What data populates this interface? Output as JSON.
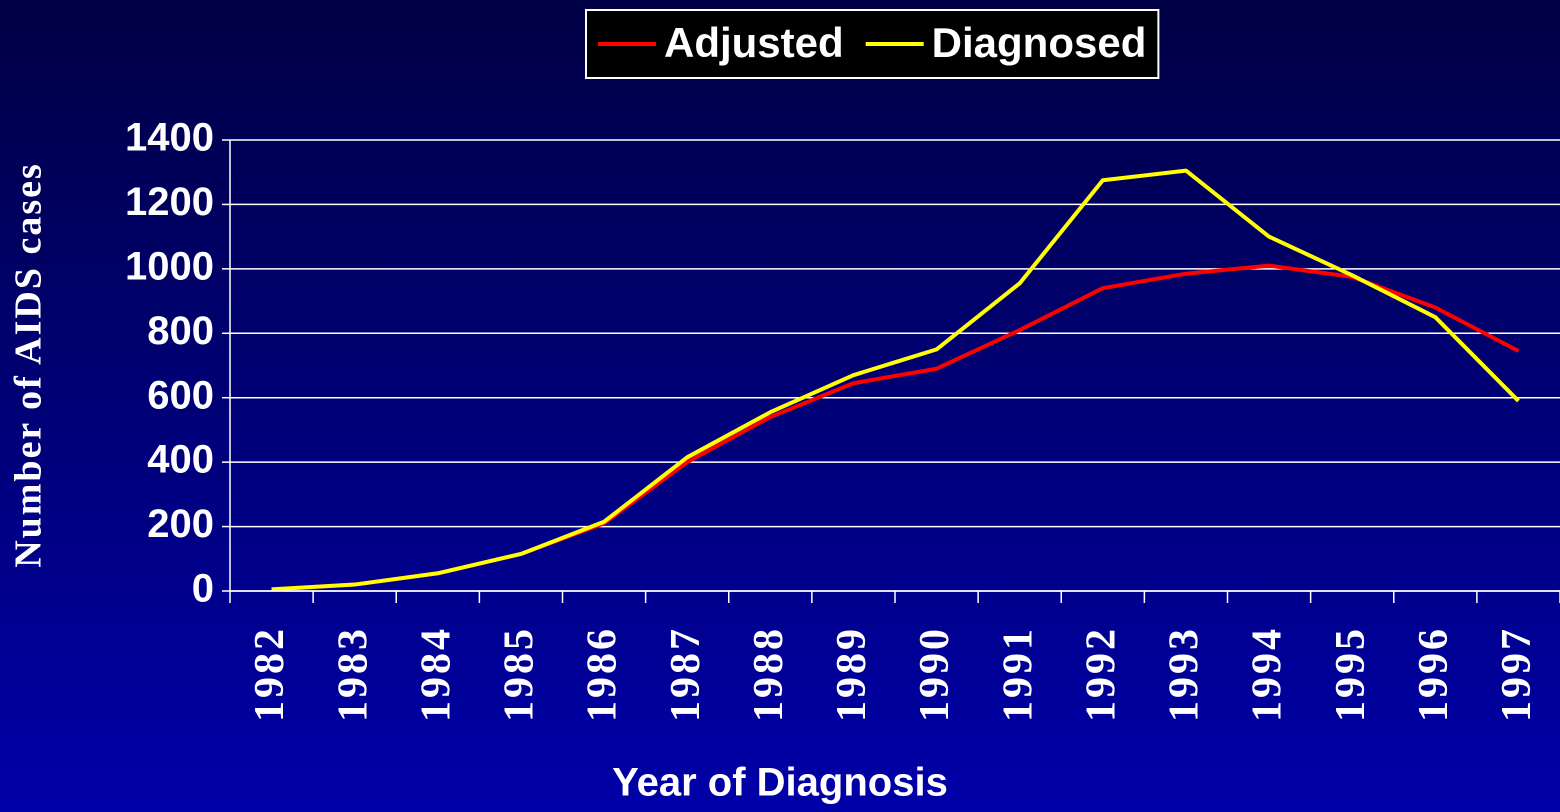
{
  "chart_data": {
    "type": "line",
    "x_label": "Year of Diagnosis",
    "y_label": "Number of AIDS cases",
    "categories": [
      "1982",
      "1983",
      "1984",
      "1985",
      "1986",
      "1987",
      "1988",
      "1989",
      "1990",
      "1991",
      "1992",
      "1993",
      "1994",
      "1995",
      "1996",
      "1997"
    ],
    "series": [
      {
        "name": "Adjusted",
        "color": "#ff0000",
        "values": [
          5,
          20,
          55,
          115,
          210,
          400,
          540,
          645,
          690,
          810,
          940,
          985,
          1010,
          975,
          880,
          745
        ]
      },
      {
        "name": "Diagnosed",
        "color": "#ffff00",
        "values": [
          5,
          20,
          55,
          115,
          215,
          415,
          555,
          670,
          750,
          955,
          1275,
          1305,
          1100,
          980,
          850,
          590
        ]
      }
    ],
    "ylim": [
      0,
      1400
    ],
    "yticks": [
      0,
      200,
      400,
      600,
      800,
      1000,
      1200,
      1400
    ],
    "grid": true,
    "legend": "top"
  }
}
